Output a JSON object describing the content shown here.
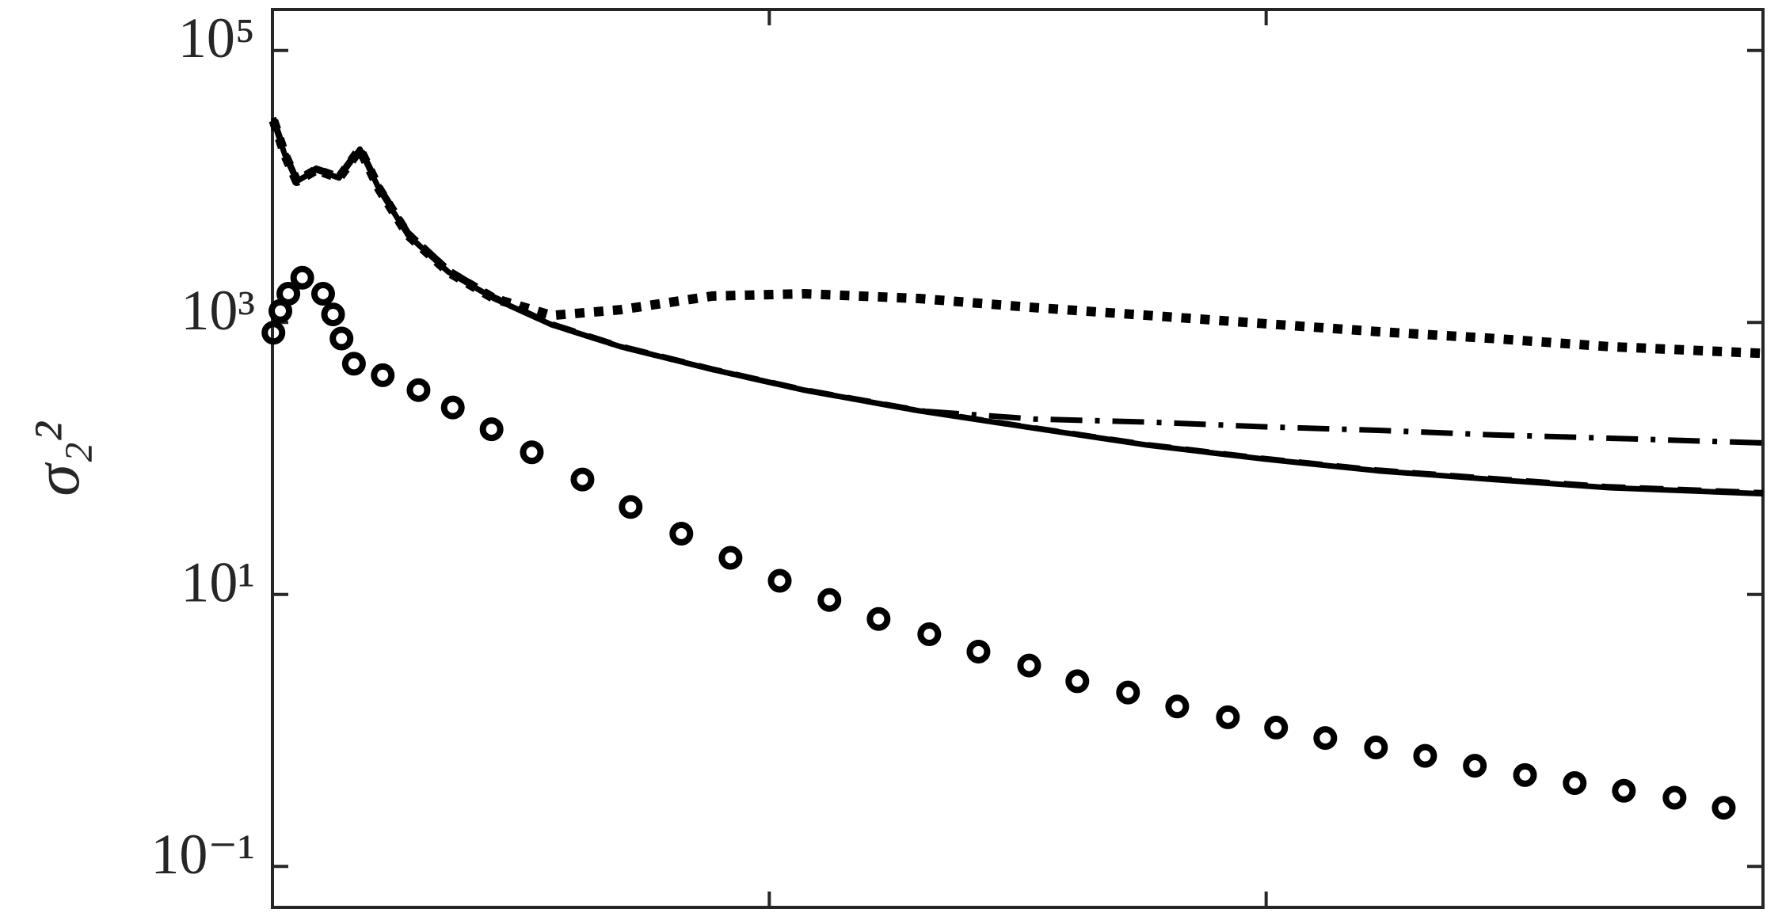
{
  "chart_data": {
    "type": "line",
    "ylabel": "σ₂²",
    "log_y": true,
    "xlim": [
      0,
      3
    ],
    "xticks": [
      0,
      1,
      2,
      3
    ],
    "ylim": [
      0.05,
      200000
    ],
    "yticks": [
      {
        "value": 0.1,
        "label": "10⁻¹"
      },
      {
        "value": 10,
        "label": "10¹"
      },
      {
        "value": 1000,
        "label": "10³"
      },
      {
        "value": 100000,
        "label": "10⁵"
      }
    ],
    "series": [
      {
        "style": "solid",
        "color": "#000000",
        "x": [
          0.002,
          0.025,
          0.049,
          0.088,
          0.134,
          0.176,
          0.215,
          0.273,
          0.354,
          0.446,
          0.562,
          0.7,
          0.885,
          1.07,
          1.301,
          1.532,
          1.764,
          1.995,
          2.226,
          2.457,
          2.688,
          3.0
        ],
        "values": [
          30550,
          17060,
          10900,
          13250,
          11560,
          18790,
          9520,
          4380,
          2350,
          1500,
          961,
          665,
          451,
          318,
          224,
          167,
          125,
          99,
          81,
          70,
          61,
          55
        ]
      },
      {
        "style": "dashed",
        "color": "#000000",
        "x": [
          0.002,
          0.025,
          0.049,
          0.088,
          0.134,
          0.176,
          0.215,
          0.273,
          0.354,
          0.446,
          0.562,
          0.7,
          0.885,
          1.07,
          1.301,
          1.532,
          1.764,
          1.995,
          2.226,
          2.457,
          2.688,
          3.0
        ],
        "values": [
          32000,
          18000,
          11300,
          13600,
          12000,
          19500,
          10000,
          4600,
          2450,
          1540,
          975,
          672,
          455,
          320,
          226,
          168,
          126,
          100,
          82,
          71,
          62,
          56
        ]
      },
      {
        "style": "dashdot",
        "color": "#000000",
        "x": [
          0.002,
          0.025,
          0.049,
          0.088,
          0.134,
          0.176,
          0.215,
          0.273,
          0.354,
          0.446,
          0.562,
          0.7,
          0.885,
          1.07,
          1.301,
          1.532,
          1.764,
          1.995,
          2.226,
          2.457,
          2.688,
          3.0
        ],
        "values": [
          30550,
          17060,
          10900,
          13250,
          11560,
          18790,
          9520,
          4380,
          2350,
          1500,
          961,
          665,
          451,
          318,
          224,
          195,
          185,
          171,
          161,
          149,
          141,
          130
        ]
      },
      {
        "style": "dotted",
        "color": "#000000",
        "x": [
          0.002,
          0.025,
          0.049,
          0.088,
          0.134,
          0.176,
          0.215,
          0.273,
          0.354,
          0.446,
          0.562,
          0.7,
          0.885,
          1.07,
          1.301,
          1.532,
          1.764,
          1.995,
          2.226,
          2.457,
          2.688,
          3.0
        ],
        "values": [
          30550,
          17060,
          10900,
          13250,
          11560,
          18790,
          9520,
          4380,
          2350,
          1500,
          1125,
          1240,
          1563,
          1626,
          1500,
          1288,
          1125,
          981,
          855,
          762,
          665,
          592
        ]
      },
      {
        "style": "markers",
        "color": "#000000",
        "x": [
          0.002,
          0.016,
          0.032,
          0.06,
          0.102,
          0.122,
          0.139,
          0.164,
          0.222,
          0.294,
          0.363,
          0.441,
          0.522,
          0.624,
          0.721,
          0.823,
          0.922,
          1.021,
          1.121,
          1.22,
          1.322,
          1.421,
          1.523,
          1.62,
          1.722,
          1.821,
          1.923,
          2.02,
          2.119,
          2.221,
          2.32,
          2.42,
          2.521,
          2.621,
          2.72,
          2.822,
          2.921
        ],
        "values": [
          840,
          1214,
          1626,
          2133,
          1626,
          1146,
          762,
          497,
          409,
          318,
          237,
          164,
          111,
          70,
          44,
          28,
          18.6,
          12.6,
          9.1,
          6.6,
          5.1,
          3.8,
          3.0,
          2.3,
          1.9,
          1.5,
          1.25,
          1.05,
          0.88,
          0.75,
          0.65,
          0.55,
          0.47,
          0.41,
          0.36,
          0.32,
          0.27
        ]
      }
    ]
  }
}
